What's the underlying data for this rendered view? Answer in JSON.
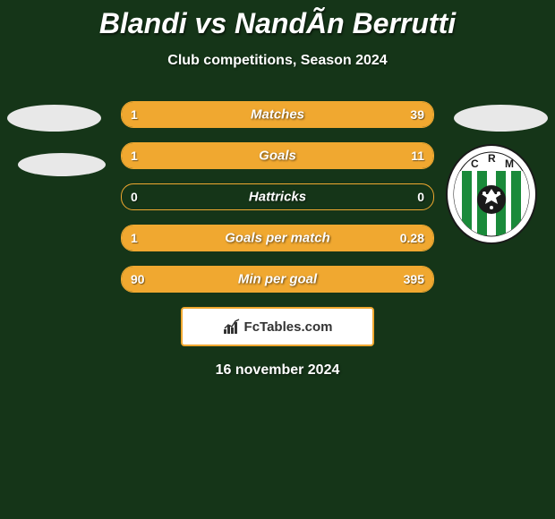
{
  "title": "Blandi vs NandÃn Berrutti",
  "subtitle": "Club competitions, Season 2024",
  "colors": {
    "background": "#153518",
    "accent": "#f0a830",
    "text": "#ffffff",
    "footer_text": "#333333",
    "footer_bg": "#ffffff",
    "avatar_bg": "#e8e8e8"
  },
  "bars": [
    {
      "label": "Matches",
      "left": "1",
      "right": "39",
      "left_pct": 20,
      "right_pct": 80
    },
    {
      "label": "Goals",
      "left": "1",
      "right": "11",
      "left_pct": 20,
      "right_pct": 80
    },
    {
      "label": "Hattricks",
      "left": "0",
      "right": "0",
      "left_pct": 0,
      "right_pct": 0
    },
    {
      "label": "Goals per match",
      "left": "1",
      "right": "0.28",
      "left_pct": 80,
      "right_pct": 20
    },
    {
      "label": "Min per goal",
      "left": "90",
      "right": "395",
      "left_pct": 20,
      "right_pct": 80
    }
  ],
  "footer_brand": "FcTables.com",
  "date": "16 november 2024",
  "club_badge": {
    "letters": "CRM",
    "stripe_color": "#1a8a3a",
    "bg_color": "#ffffff",
    "ring_color": "#1a1a1a"
  }
}
